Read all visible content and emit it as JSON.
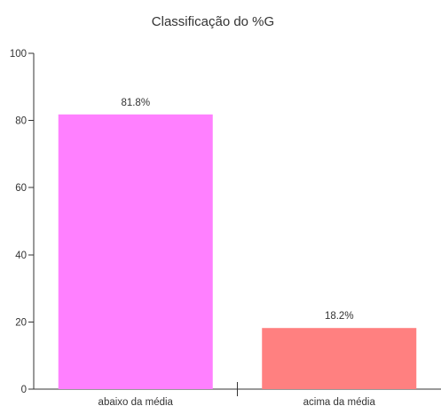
{
  "chart_data": {
    "type": "bar",
    "title": "Classificação do %G",
    "xlabel": "",
    "ylabel": "",
    "categories": [
      "abaixo da média",
      "acima da média"
    ],
    "values": [
      81.8,
      18.2
    ],
    "data_labels": [
      "81.8%",
      "18.2%"
    ],
    "ylim": [
      0,
      100
    ],
    "yticks": [
      0,
      20,
      40,
      60,
      80,
      100
    ],
    "ytick_labels": [
      "0",
      "20",
      "40",
      "60",
      "80",
      "100"
    ],
    "colors": [
      "#ff80ff",
      "#ff8080"
    ],
    "grid": false,
    "legend": "none"
  }
}
